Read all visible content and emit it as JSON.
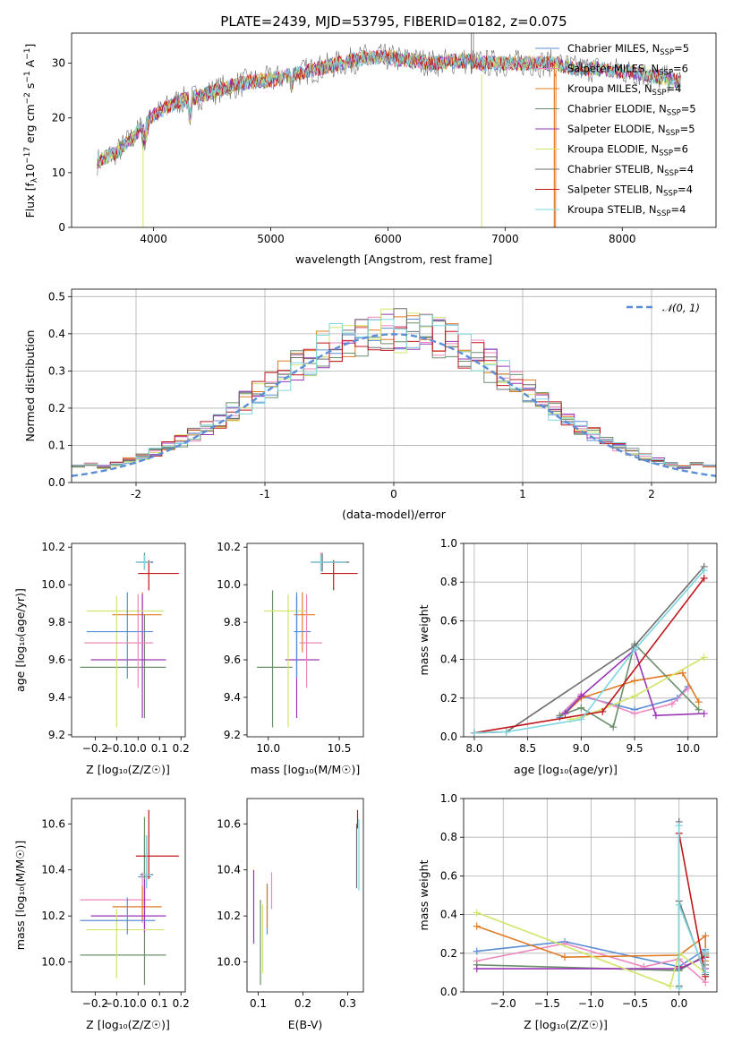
{
  "chart_data": [
    {
      "id": "spectrum",
      "type": "line",
      "title": "PLATE=2439, MJD=53795, FIBERID=0182, z=0.075",
      "xlabel": "wavelength [Angstrom, rest frame]",
      "ylabel_parts": {
        "a": "Flux [f",
        "b": "λ",
        "c": "10",
        "d": "−17",
        "e": " erg cm",
        "f": "−2",
        "g": " s",
        "h": "−1",
        "i": " A",
        "j": "−1",
        "k": "]"
      },
      "xlim": [
        3300,
        8800
      ],
      "ylim": [
        0,
        35.5
      ],
      "xticks": [
        4000,
        5000,
        6000,
        7000,
        8000
      ],
      "yticks": [
        0,
        10,
        20,
        30
      ],
      "legend_position": "top-right",
      "legend": [
        {
          "pre": "Chabrier MILES, N",
          "sub": "SSP",
          "post": "=5"
        },
        {
          "pre": "Salpeter MILES, N",
          "sub": "SSP",
          "post": "=6"
        },
        {
          "pre": "Kroupa MILES, N",
          "sub": "SSP",
          "post": "=4"
        },
        {
          "pre": "Chabrier ELODIE, N",
          "sub": "SSP",
          "post": "=5"
        },
        {
          "pre": "Salpeter ELODIE, N",
          "sub": "SSP",
          "post": "=5"
        },
        {
          "pre": "Kroupa ELODIE, N",
          "sub": "SSP",
          "post": "=6"
        },
        {
          "pre": "Chabrier STELIB, N",
          "sub": "SSP",
          "post": "=4"
        },
        {
          "pre": "Salpeter STELIB, N",
          "sub": "SSP",
          "post": "=4"
        },
        {
          "pre": "Kroupa STELIB, N",
          "sub": "SSP",
          "post": "=4"
        }
      ],
      "continuum": [
        [
          3520,
          12
        ],
        [
          3700,
          14
        ],
        [
          3850,
          17
        ],
        [
          3950,
          20
        ],
        [
          4050,
          21
        ],
        [
          4200,
          23
        ],
        [
          4400,
          24
        ],
        [
          4600,
          25.5
        ],
        [
          4800,
          26.5
        ],
        [
          5000,
          27
        ],
        [
          5200,
          28
        ],
        [
          5400,
          29
        ],
        [
          5600,
          30
        ],
        [
          5800,
          31
        ],
        [
          6000,
          31
        ],
        [
          6200,
          30.5
        ],
        [
          6400,
          30
        ],
        [
          6600,
          30.5
        ],
        [
          6800,
          30
        ],
        [
          7000,
          30
        ],
        [
          7200,
          30
        ],
        [
          7420,
          30
        ],
        [
          7600,
          29
        ],
        [
          7800,
          29
        ],
        [
          8000,
          28.5
        ],
        [
          8200,
          28
        ],
        [
          8400,
          27
        ],
        [
          8600,
          26.5
        ]
      ],
      "series_ranges": [
        [
          3520,
          8500
        ],
        [
          3520,
          7440
        ],
        [
          3520,
          7440
        ],
        [
          3520,
          8500
        ],
        [
          3520,
          8500
        ],
        [
          3520,
          8500
        ],
        [
          3520,
          8500
        ],
        [
          3520,
          8500
        ],
        [
          3520,
          8500
        ]
      ]
    },
    {
      "id": "residuals",
      "type": "histogram",
      "xlabel": "(data-model)/error",
      "ylabel": "Normed distribution",
      "xlim": [
        -2.5,
        2.5
      ],
      "ylim": [
        0,
        0.52
      ],
      "xticks": [
        -2,
        -1,
        0,
        1,
        2
      ],
      "yticks": [
        0.0,
        0.1,
        0.2,
        0.3,
        0.4,
        0.5
      ],
      "legend_position": "top-right",
      "legend": [
        {
          "name": "𝒩(0, 1)",
          "style": "dashed"
        }
      ],
      "bin_width": 0.1
    },
    {
      "id": "age_vs_Z",
      "type": "errorbar",
      "xlabel": "Z [log₁₀(Z/Z☉)]",
      "ylabel": "age  [log₁₀(age/yr)]",
      "xlim": [
        -0.31,
        0.22
      ],
      "ylim": [
        9.19,
        10.22
      ],
      "xticks": [
        -0.2,
        -0.1,
        0.0,
        0.1,
        0.2
      ],
      "yticks": [
        9.2,
        9.4,
        9.6,
        9.8,
        10.0,
        10.2
      ],
      "points": [
        {
          "x": 0.03,
          "y": 10.12,
          "xlo": 0.0,
          "xhi": 0.07,
          "ylo": 10.08,
          "yhi": 10.16
        },
        {
          "x": 0.03,
          "y": 10.12,
          "xlo": -0.01,
          "xhi": 0.07,
          "ylo": 10.08,
          "yhi": 10.16
        },
        {
          "x": 0.02,
          "y": 9.84,
          "xlo": -0.12,
          "xhi": 0.11,
          "ylo": 9.64,
          "yhi": 9.96
        },
        {
          "x": 0.03,
          "y": 9.56,
          "xlo": -0.27,
          "xhi": 0.13,
          "ylo": 9.29,
          "yhi": 9.84
        },
        {
          "x": 0.02,
          "y": 9.6,
          "xlo": -0.22,
          "xhi": 0.13,
          "ylo": 9.29,
          "yhi": 9.95
        },
        {
          "x": -0.1,
          "y": 9.86,
          "xlo": -0.24,
          "xhi": 0.12,
          "ylo": 9.24,
          "yhi": 9.94
        },
        {
          "x": 0.03,
          "y": 10.12,
          "xlo": -0.01,
          "xhi": 0.07,
          "ylo": 10.08,
          "yhi": 10.17
        },
        {
          "x": 0.05,
          "y": 10.06,
          "xlo": 0.0,
          "xhi": 0.19,
          "ylo": 9.97,
          "yhi": 10.13
        },
        {
          "x": 0.03,
          "y": 10.12,
          "xlo": -0.01,
          "xhi": 0.06,
          "ylo": 10.08,
          "yhi": 10.16
        }
      ],
      "extra_points": [
        {
          "series": 0,
          "x": -0.05,
          "y": 9.75,
          "xlo": -0.24,
          "xhi": 0.07,
          "ylo": 9.5,
          "yhi": 9.96
        },
        {
          "series": 1,
          "x": 0.0,
          "y": 9.69,
          "xlo": -0.25,
          "xhi": 0.07,
          "ylo": 9.45,
          "yhi": 9.95
        }
      ]
    },
    {
      "id": "age_vs_mass",
      "type": "errorbar",
      "xlabel": "mass [log₁₀(M/M☉)]",
      "ylabel": "",
      "xlim": [
        9.85,
        10.67
      ],
      "ylim": [
        9.19,
        10.22
      ],
      "xticks": [
        10.0,
        10.5
      ],
      "yticks": [
        9.2,
        9.4,
        9.6,
        9.8,
        10.0,
        10.2
      ],
      "points": [
        {
          "x": 10.38,
          "y": 10.12,
          "xlo": 10.3,
          "xhi": 10.55,
          "ylo": 10.07,
          "yhi": 10.16
        },
        {
          "x": 10.37,
          "y": 10.12,
          "xlo": 10.3,
          "xhi": 10.55,
          "ylo": 10.07,
          "yhi": 10.17
        },
        {
          "x": 10.24,
          "y": 9.84,
          "xlo": 10.18,
          "xhi": 10.33,
          "ylo": 9.64,
          "yhi": 9.96
        },
        {
          "x": 10.03,
          "y": 9.56,
          "xlo": 9.92,
          "xhi": 10.17,
          "ylo": 9.24,
          "yhi": 9.97
        },
        {
          "x": 10.2,
          "y": 9.6,
          "xlo": 10.12,
          "xhi": 10.36,
          "ylo": 9.29,
          "yhi": 9.94
        },
        {
          "x": 10.14,
          "y": 9.86,
          "xlo": 9.97,
          "xhi": 10.27,
          "ylo": 9.24,
          "yhi": 9.95
        },
        {
          "x": 10.38,
          "y": 10.12,
          "xlo": 10.3,
          "xhi": 10.57,
          "ylo": 10.07,
          "yhi": 10.17
        },
        {
          "x": 10.46,
          "y": 10.06,
          "xlo": 10.37,
          "xhi": 10.63,
          "ylo": 9.97,
          "yhi": 10.13
        },
        {
          "x": 10.37,
          "y": 10.12,
          "xlo": 10.3,
          "xhi": 10.55,
          "ylo": 10.07,
          "yhi": 10.16
        }
      ],
      "extra_points": [
        {
          "series": 0,
          "x": 10.2,
          "y": 9.75,
          "xlo": 10.18,
          "xhi": 10.3,
          "ylo": 9.5,
          "yhi": 9.96
        },
        {
          "series": 1,
          "x": 10.27,
          "y": 9.69,
          "xlo": 10.22,
          "xhi": 10.38,
          "ylo": 9.45,
          "yhi": 9.95
        }
      ]
    },
    {
      "id": "weight_vs_age",
      "type": "line",
      "xlabel": "age  [log₁₀(age/yr)]",
      "ylabel": "mass weight",
      "xlim": [
        7.9,
        10.27
      ],
      "ylim": [
        0,
        1.0
      ],
      "xticks": [
        8.0,
        8.5,
        9.0,
        9.5,
        10.0
      ],
      "yticks": [
        0.0,
        0.2,
        0.4,
        0.6,
        0.8,
        1.0
      ],
      "series": [
        {
          "x": [
            8.8,
            9.0,
            9.5,
            9.9,
            10.0
          ],
          "y": [
            0.1,
            0.21,
            0.14,
            0.2,
            0.26
          ]
        },
        {
          "x": [
            8.8,
            9.0,
            9.5,
            9.85,
            10.0
          ],
          "y": [
            0.11,
            0.22,
            0.12,
            0.17,
            0.25
          ]
        },
        {
          "x": [
            8.85,
            9.0,
            9.5,
            9.95,
            10.1
          ],
          "y": [
            0.12,
            0.2,
            0.29,
            0.33,
            0.18
          ]
        },
        {
          "x": [
            8.8,
            9.0,
            9.3,
            9.5,
            10.1
          ],
          "y": [
            0.11,
            0.15,
            0.05,
            0.48,
            0.14
          ]
        },
        {
          "x": [
            8.85,
            9.0,
            9.5,
            9.7,
            10.15
          ],
          "y": [
            0.12,
            0.21,
            0.45,
            0.11,
            0.12
          ]
        },
        {
          "x": [
            8.9,
            9.0,
            9.5,
            10.15
          ],
          "y": [
            0.09,
            0.1,
            0.21,
            0.41
          ]
        },
        {
          "x": [
            8.0,
            8.3,
            9.5,
            10.15
          ],
          "y": [
            0.02,
            0.025,
            0.47,
            0.88
          ]
        },
        {
          "x": [
            8.0,
            9.2,
            10.15
          ],
          "y": [
            0.02,
            0.13,
            0.82
          ]
        },
        {
          "x": [
            8.0,
            8.3,
            9.0,
            9.5,
            10.15
          ],
          "y": [
            0.02,
            0.025,
            0.09,
            0.45,
            0.86
          ]
        }
      ]
    },
    {
      "id": "mass_vs_Z",
      "type": "errorbar",
      "xlabel": "Z [log₁₀(Z/Z☉)]",
      "ylabel": "mass [log₁₀(M/M☉)]",
      "xlim": [
        -0.31,
        0.22
      ],
      "ylim": [
        9.87,
        10.71
      ],
      "xticks": [
        -0.2,
        -0.1,
        0.0,
        0.1,
        0.2
      ],
      "yticks": [
        10.0,
        10.2,
        10.4,
        10.6
      ],
      "points": [
        {
          "x": 0.03,
          "y": 10.37,
          "xlo": 0.0,
          "xhi": 0.06,
          "ylo": 10.23,
          "yhi": 10.55
        },
        {
          "x": 0.02,
          "y": 10.27,
          "xlo": -0.27,
          "xhi": 0.06,
          "ylo": 10.17,
          "yhi": 10.39
        },
        {
          "x": 0.02,
          "y": 10.24,
          "xlo": -0.12,
          "xhi": 0.11,
          "ylo": 10.18,
          "yhi": 10.33
        },
        {
          "x": 0.03,
          "y": 10.03,
          "xlo": -0.27,
          "xhi": 0.13,
          "ylo": 9.9,
          "yhi": 10.63
        },
        {
          "x": 0.03,
          "y": 10.2,
          "xlo": -0.22,
          "xhi": 0.13,
          "ylo": 10.13,
          "yhi": 10.36
        },
        {
          "x": -0.1,
          "y": 10.14,
          "xlo": -0.24,
          "xhi": 0.12,
          "ylo": 9.93,
          "yhi": 10.23
        },
        {
          "x": 0.04,
          "y": 10.38,
          "xlo": 0.01,
          "xhi": 0.07,
          "ylo": 10.32,
          "yhi": 10.55
        },
        {
          "x": 0.05,
          "y": 10.46,
          "xlo": -0.01,
          "xhi": 0.19,
          "ylo": 10.36,
          "yhi": 10.66
        },
        {
          "x": 0.04,
          "y": 10.38,
          "xlo": 0.02,
          "xhi": 0.06,
          "ylo": 10.32,
          "yhi": 10.55
        }
      ],
      "extra_points": [
        {
          "series": 0,
          "x": -0.05,
          "y": 10.18,
          "xlo": -0.27,
          "xhi": 0.08,
          "ylo": 10.12,
          "yhi": 10.28
        }
      ]
    },
    {
      "id": "mass_vs_ebv",
      "type": "errorbar",
      "xlabel": "E(B-V)",
      "ylabel": "",
      "xlim": [
        0.075,
        0.335
      ],
      "ylim": [
        9.87,
        10.71
      ],
      "xticks": [
        0.1,
        0.2,
        0.3
      ],
      "yticks": [
        10.0,
        10.2,
        10.4,
        10.6
      ],
      "points": [
        {
          "x": 0.12,
          "y": 10.18,
          "xlo": 0.12,
          "xhi": 0.12,
          "ylo": 10.12,
          "yhi": 10.34
        },
        {
          "x": 0.13,
          "y": 10.24,
          "xlo": 0.13,
          "xhi": 0.13,
          "ylo": 10.23,
          "yhi": 10.39
        },
        {
          "x": 0.12,
          "y": 10.24,
          "xlo": 0.12,
          "xhi": 0.12,
          "ylo": 10.15,
          "yhi": 10.34
        },
        {
          "x": 0.105,
          "y": 10.1,
          "xlo": 0.105,
          "xhi": 0.105,
          "ylo": 9.9,
          "yhi": 10.27
        },
        {
          "x": 0.09,
          "y": 10.22,
          "xlo": 0.09,
          "xhi": 0.09,
          "ylo": 10.08,
          "yhi": 10.4
        },
        {
          "x": 0.11,
          "y": 10.1,
          "xlo": 0.11,
          "xhi": 0.11,
          "ylo": 9.95,
          "yhi": 10.25
        },
        {
          "x": 0.32,
          "y": 10.45,
          "xlo": 0.32,
          "xhi": 0.32,
          "ylo": 10.32,
          "yhi": 10.6
        },
        {
          "x": 0.322,
          "y": 10.62,
          "xlo": 0.322,
          "xhi": 0.322,
          "ylo": 10.58,
          "yhi": 10.66
        },
        {
          "x": 0.325,
          "y": 10.45,
          "xlo": 0.325,
          "xhi": 0.325,
          "ylo": 10.31,
          "yhi": 10.62
        }
      ]
    },
    {
      "id": "weight_vs_Z",
      "type": "line",
      "xlabel": "Z [log₁₀(Z/Z☉)]",
      "ylabel": "mass weight",
      "xlim": [
        -2.45,
        0.43
      ],
      "ylim": [
        0,
        1.0
      ],
      "xticks": [
        -2.0,
        -1.5,
        -1.0,
        -0.5,
        0.0
      ],
      "yticks": [
        0.0,
        0.2,
        0.4,
        0.6,
        0.8,
        1.0
      ],
      "series": [
        {
          "x": [
            -2.3,
            -1.3,
            0.0,
            0.3
          ],
          "y": [
            0.21,
            0.26,
            0.13,
            0.22
          ]
        },
        {
          "x": [
            -2.3,
            -1.3,
            -0.4,
            0.0,
            0.3
          ],
          "y": [
            0.16,
            0.25,
            0.13,
            0.17,
            0.05
          ]
        },
        {
          "x": [
            -2.3,
            -1.3,
            0.0,
            0.3,
            0.3
          ],
          "y": [
            0.34,
            0.18,
            0.19,
            0.29,
            0.16
          ]
        },
        {
          "x": [
            -2.3,
            0.0,
            0.3,
            0.3
          ],
          "y": [
            0.14,
            0.11,
            0.19,
            0.14
          ]
        },
        {
          "x": [
            -2.3,
            0.0,
            0.3,
            0.3
          ],
          "y": [
            0.12,
            0.12,
            0.18,
            0.12
          ]
        },
        {
          "x": [
            -2.3,
            -0.1,
            0.0,
            0.3
          ],
          "y": [
            0.41,
            0.03,
            0.2,
            0.1
          ]
        },
        {
          "x": [
            0.0,
            0.0,
            0.0,
            0.3,
            0.3
          ],
          "y": [
            0.03,
            0.88,
            0.47,
            0.09,
            0.2
          ]
        },
        {
          "x": [
            0.0,
            0.0,
            0.3,
            0.3
          ],
          "y": [
            0.13,
            0.82,
            0.08,
            0.18
          ]
        },
        {
          "x": [
            0.0,
            0.0,
            0.0,
            0.3,
            0.3
          ],
          "y": [
            0.02,
            0.86,
            0.45,
            0.1,
            0.21
          ]
        }
      ]
    }
  ],
  "series_colors": [
    "#5b8ed6",
    "#ec87bf",
    "#e07b24",
    "#6b8f6b",
    "#9a36b5",
    "#d2e56a",
    "#6e6e6e",
    "#c0171d",
    "#7fd6e0"
  ],
  "gaussian_color": "#5b8ed6"
}
